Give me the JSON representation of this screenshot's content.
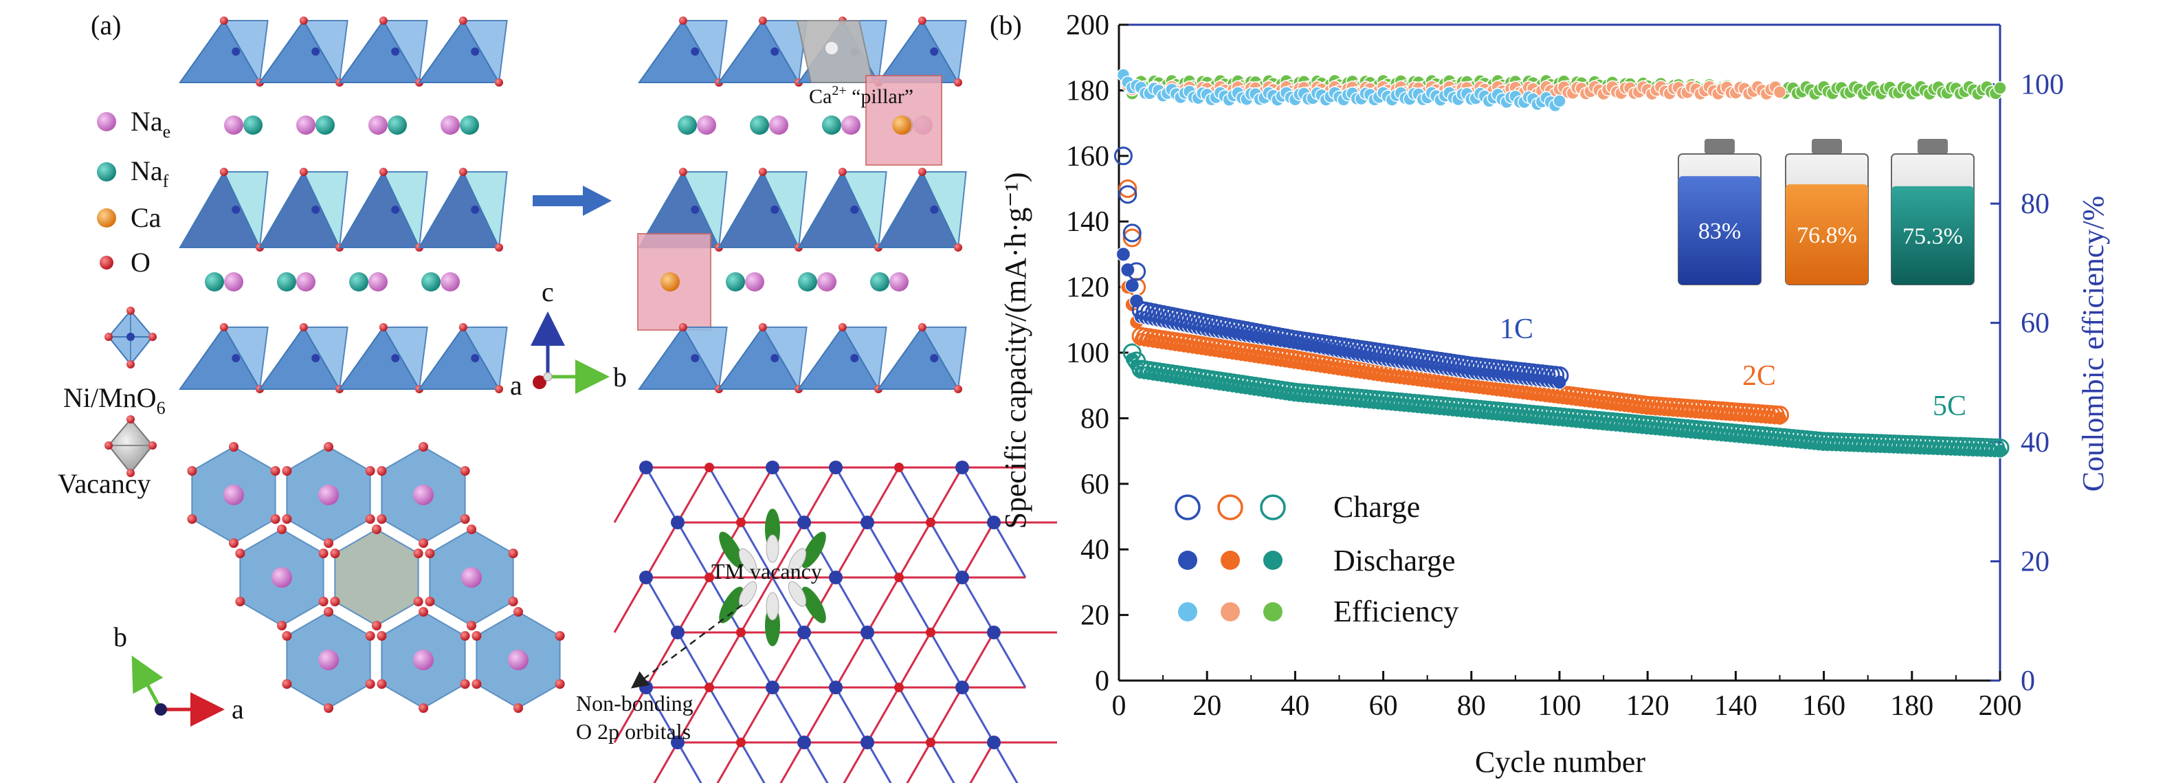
{
  "panel_a": {
    "label": "(a)",
    "legend": [
      {
        "symbol": "Na",
        "sub": "e",
        "color": "#d37ad0"
      },
      {
        "symbol": "Na",
        "sub": "f",
        "color": "#17968a"
      },
      {
        "symbol": "Ca",
        "sub": "",
        "color": "#f08a1c"
      },
      {
        "symbol": "O",
        "sub": "",
        "color": "#d21f2a"
      }
    ],
    "octa_label_main": "Ni/MnO",
    "octa_label_sub": "6",
    "vacancy_label": "Vacancy",
    "pillar_label_sup": "2+",
    "pillar_label": "Ca",
    "pillar_label_rest": " “pillar”",
    "axes_side": {
      "c": "c",
      "a": "a",
      "b": "b"
    },
    "axes_top": {
      "b": "b",
      "a": "a"
    },
    "tm_vacancy_label": "TM vacancy",
    "nonbonding_line1": "Non-bonding",
    "nonbonding_line2": "O 2p orbitals"
  },
  "colors": {
    "octa_face": "#7fb0e0",
    "octa_edge": "#3f77b7",
    "cyan_face": "#a7e3e8",
    "pink_face": "#e9a9b7",
    "tm_blue": "#2c3fa8",
    "bond_red": "#d21f2a",
    "axis_blue": "#2c3ea6",
    "arrow_blue": "#3b6cc0"
  },
  "chart_data": {
    "type": "scatter",
    "panel_label": "(b)",
    "xlabel": "Cycle number",
    "ylabel_left": "Specific capacity/(mA·h·g⁻¹)",
    "ylabel_right": "Coulombic efficiency/%",
    "xlim": [
      0,
      200
    ],
    "ylim_left": [
      0,
      200
    ],
    "ylim_right": [
      0,
      110
    ],
    "x_ticks": [
      "0",
      "20",
      "40",
      "60",
      "80",
      "100",
      "120",
      "140",
      "160",
      "180",
      "200"
    ],
    "y_ticks_left": [
      "0",
      "20",
      "40",
      "60",
      "80",
      "100",
      "120",
      "140",
      "160",
      "180",
      "200"
    ],
    "y_ticks_right": [
      "0",
      "20",
      "40",
      "60",
      "80",
      "100"
    ],
    "grid": false,
    "rate_series": [
      {
        "name": "1C",
        "color": "#2b4fb4",
        "light": "#6ac2ec",
        "charge": {
          "x": [
            1,
            5,
            20,
            40,
            60,
            80,
            100
          ],
          "y": [
            160,
            113,
            109,
            104,
            100,
            96,
            93
          ]
        },
        "discharge": {
          "x": [
            1,
            5,
            20,
            40,
            60,
            80,
            100
          ],
          "y": [
            130,
            111,
            107,
            103,
            98,
            94,
            91
          ]
        },
        "efficiency": {
          "x": [
            1,
            5,
            20,
            40,
            60,
            80,
            100
          ],
          "y": [
            101,
            99,
            98,
            98,
            98,
            98,
            97
          ]
        },
        "retention": "83%"
      },
      {
        "name": "2C",
        "color": "#ef6a22",
        "light": "#f5a07a",
        "charge": {
          "x": [
            2,
            5,
            30,
            60,
            90,
            120,
            150
          ],
          "y": [
            150,
            105,
            100,
            94,
            89,
            84,
            81
          ]
        },
        "discharge": {
          "x": [
            2,
            5,
            30,
            60,
            90,
            120,
            150
          ],
          "y": [
            120,
            104,
            99,
            93,
            88,
            83,
            80
          ]
        },
        "efficiency": {
          "x": [
            2,
            5,
            30,
            60,
            90,
            120,
            150
          ],
          "y": [
            100,
            99,
            99,
            99,
            99,
            99,
            99
          ]
        },
        "retention": "76.8%"
      },
      {
        "name": "5C",
        "color": "#1d9488",
        "light": "#6cc04a",
        "charge": {
          "x": [
            3,
            5,
            40,
            80,
            120,
            160,
            200
          ],
          "y": [
            100,
            95,
            88,
            83,
            78,
            73,
            71
          ]
        },
        "discharge": {
          "x": [
            3,
            5,
            40,
            80,
            120,
            160,
            200
          ],
          "y": [
            98,
            94,
            87,
            82,
            77,
            72,
            70
          ]
        },
        "efficiency": {
          "x": [
            3,
            5,
            50,
            100,
            150,
            200
          ],
          "y": [
            99,
            100,
            100,
            100,
            99,
            99
          ]
        },
        "retention": "75.3%"
      }
    ],
    "legend": {
      "position": "bottom-left",
      "rows": [
        "Charge",
        "Discharge",
        "Efficiency"
      ]
    },
    "battery_fill_fraction": [
      0.83,
      0.768,
      0.753
    ]
  }
}
